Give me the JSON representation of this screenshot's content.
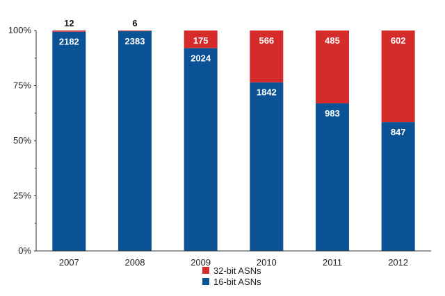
{
  "chart_data": {
    "type": "bar",
    "stacked": true,
    "normalized": true,
    "categories": [
      "2007",
      "2008",
      "2009",
      "2010",
      "2011",
      "2012"
    ],
    "series": [
      {
        "name": "16-bit ASNs",
        "color": "#0b5394",
        "values": [
          2182,
          2383,
          2024,
          1842,
          983,
          847
        ]
      },
      {
        "name": "32-bit ASNs",
        "color": "#d62b2b",
        "values": [
          12,
          6,
          175,
          566,
          485,
          602
        ]
      }
    ],
    "y_ticks": [
      "0%",
      "25%",
      "50%",
      "75%",
      "100%"
    ],
    "ylim": [
      0,
      100
    ],
    "grid": false,
    "legend_position": "bottom-center",
    "legend_order": [
      "32-bit ASNs",
      "16-bit ASNs"
    ]
  }
}
